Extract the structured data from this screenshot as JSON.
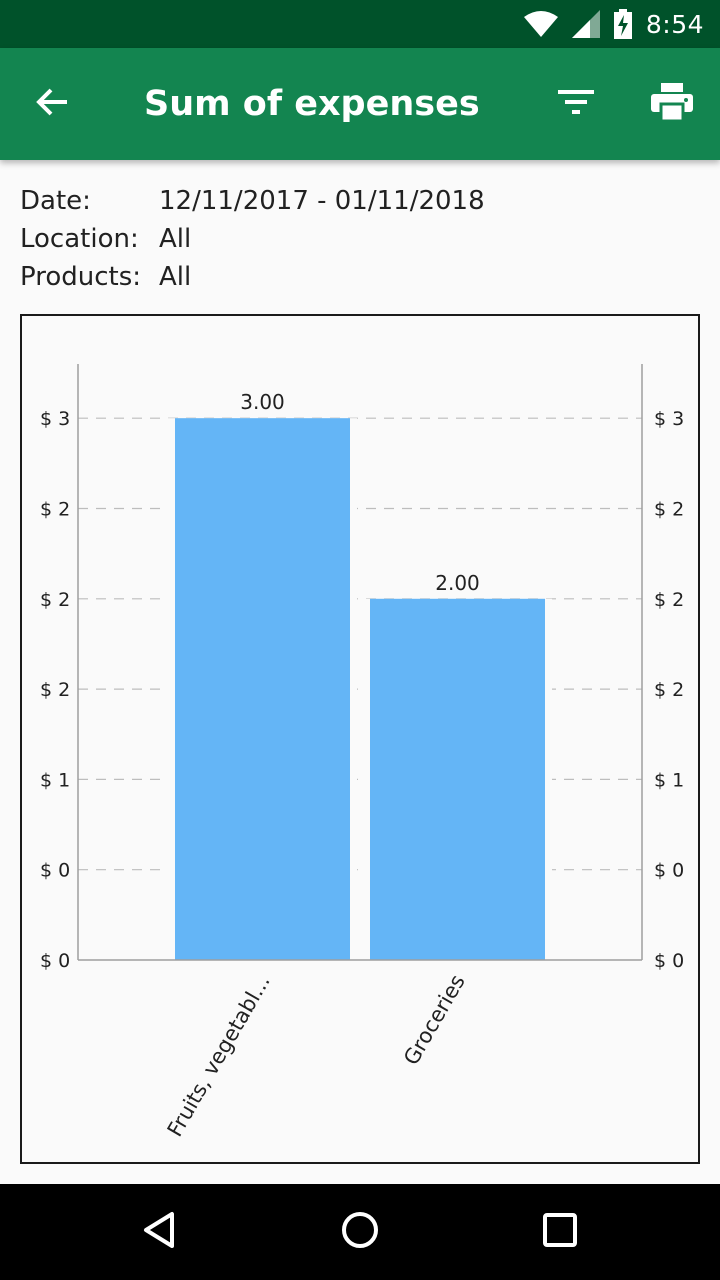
{
  "status_bar": {
    "time": "8:54",
    "icons": [
      "wifi-icon",
      "cell-signal-icon",
      "battery-charging-icon"
    ]
  },
  "app_bar": {
    "title": "Sum of expenses",
    "back_icon": "arrow-back-icon",
    "filter_icon": "filter-icon",
    "print_icon": "print-icon",
    "color": "#138550"
  },
  "filters": [
    {
      "label": "Date:",
      "value": "12/11/2017 - 01/11/2018"
    },
    {
      "label": "Location:",
      "value": "All"
    },
    {
      "label": "Products:",
      "value": "All"
    }
  ],
  "chart_data": {
    "type": "bar",
    "categories": [
      "Fruits, vegetabl...",
      "Groceries"
    ],
    "values": [
      3.0,
      2.0
    ],
    "data_labels": [
      "3.00",
      "2.00"
    ],
    "y_tick_values": [
      0,
      0.5,
      1.0,
      1.5,
      2.0,
      2.5,
      3.0
    ],
    "y_tick_labels": [
      "$ 0",
      "$ 0",
      "$ 1",
      "$ 2",
      "$ 2",
      "$ 2",
      "$ 3"
    ],
    "ylim": [
      0,
      3.3
    ],
    "grid": true,
    "axis_labels_both_sides": true,
    "bar_color": "#64b5f6"
  },
  "nav_bar": {
    "icons": [
      "back-triangle-icon",
      "home-circle-icon",
      "recents-square-icon"
    ]
  }
}
